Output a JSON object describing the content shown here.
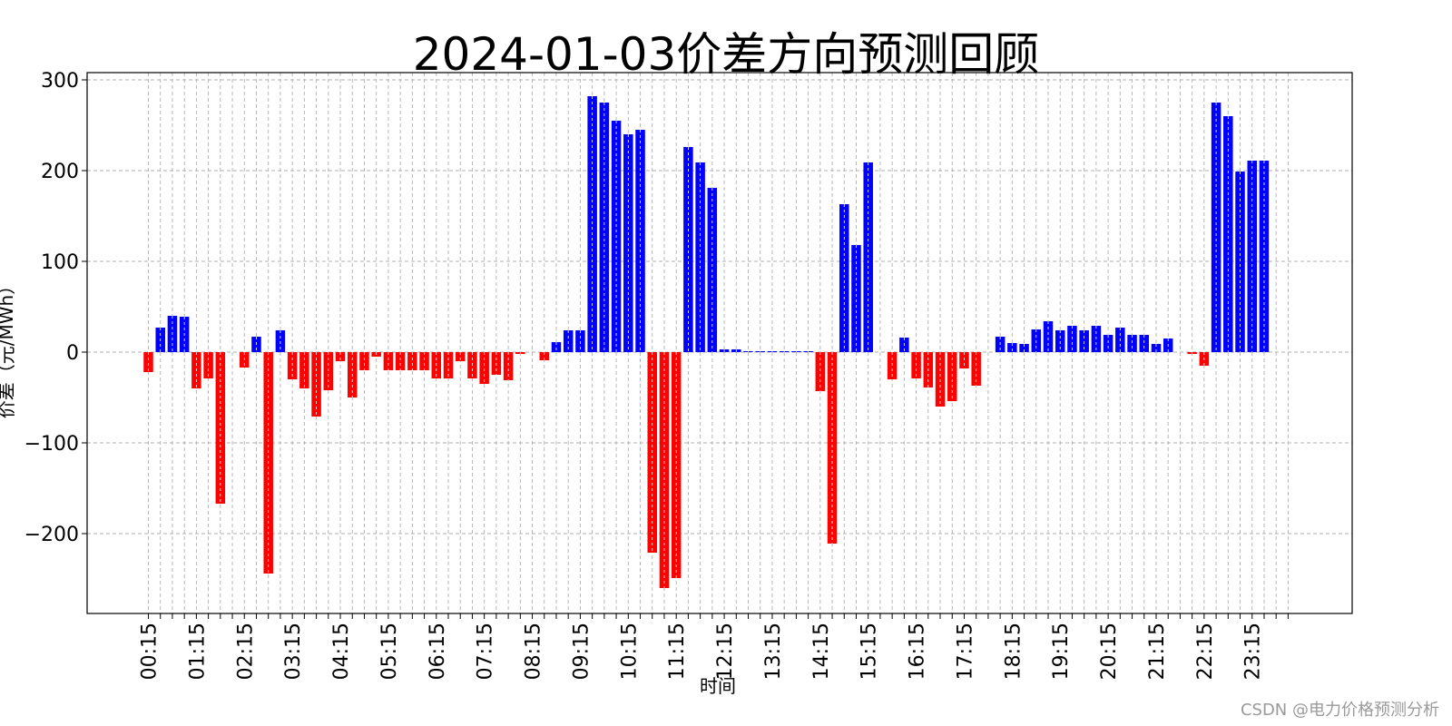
{
  "chart_data": {
    "type": "bar",
    "title": "2024-01-03价差方向预测回顾",
    "xlabel": "时间",
    "ylabel": "价差（元/MWh）",
    "ylim": [
      -290,
      310
    ],
    "yticks": [
      300,
      200,
      100,
      0,
      -100,
      -200
    ],
    "ytick_labels": [
      "300",
      "200",
      "100",
      "0",
      "−100",
      "−200"
    ],
    "grid": true,
    "colors": {
      "positive": "#0000ff",
      "negative": "#ff0000",
      "grid": "#b0b0b0"
    },
    "x_slots": 96,
    "tick_labels": [
      "00:15",
      "01:15",
      "02:15",
      "03:15",
      "04:15",
      "05:15",
      "06:15",
      "07:15",
      "08:15",
      "09:15",
      "10:15",
      "11:15",
      "12:15",
      "13:15",
      "14:15",
      "15:15",
      "16:15",
      "17:15",
      "18:15",
      "19:15",
      "20:15",
      "21:15",
      "22:15",
      "23:15"
    ],
    "tick_start_slot": 0,
    "tick_every": 4,
    "values": [
      -22,
      27,
      40,
      39,
      -40,
      -29,
      -167,
      0,
      -17,
      17,
      -244,
      24,
      -30,
      -40,
      -71,
      -42,
      -10,
      -50,
      -20,
      -5,
      -20,
      -20,
      -20,
      -20,
      -29,
      -29,
      -10,
      -29,
      -35,
      -25,
      -31,
      -2,
      0,
      -9,
      11,
      24,
      24,
      282,
      275,
      255,
      240,
      245,
      -221,
      -260,
      -249,
      226,
      209,
      181,
      3,
      3,
      1,
      1,
      1,
      1,
      1,
      1,
      -43,
      -211,
      163,
      118,
      209,
      0,
      -30,
      16,
      -29,
      -39,
      -60,
      -54,
      -18,
      -37,
      0,
      17,
      10,
      9,
      25,
      34,
      24,
      29,
      24,
      29,
      19,
      27,
      19,
      19,
      9,
      15,
      0,
      -2,
      -15,
      275,
      260,
      199,
      211,
      211,
      0,
      0
    ]
  },
  "watermark": "CSDN @电力价格预测分析"
}
